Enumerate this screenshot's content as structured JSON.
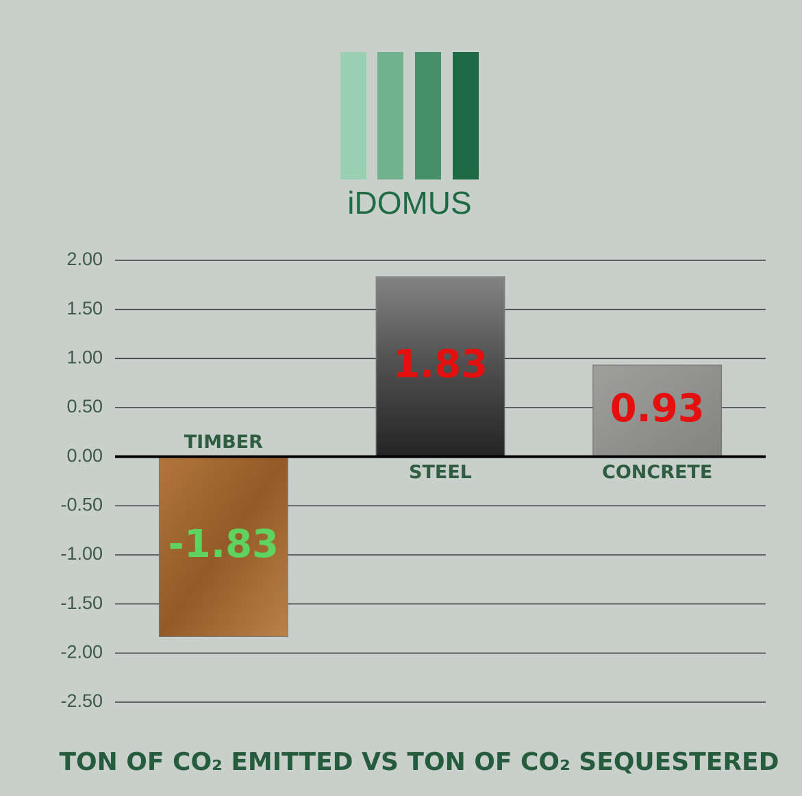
{
  "chart_data": {
    "type": "bar",
    "logo_text": "iDOMUS",
    "title": "TON OF CO₂ EMITTED VS TON OF CO₂ SEQUESTERED",
    "categories": [
      "TIMBER",
      "STEEL",
      "CONCRETE"
    ],
    "values": [
      -1.83,
      1.83,
      0.93
    ],
    "colors": [
      "#a5692f",
      "#3b3b3b",
      "#8f908e"
    ],
    "value_label_colors": [
      "#5fd35f",
      "#e3100f",
      "#e3100f"
    ],
    "ylim": [
      -2.5,
      2
    ],
    "yticks": [
      {
        "value": 2,
        "label": "2.00"
      },
      {
        "value": 1.5,
        "label": "1.50"
      },
      {
        "value": 1,
        "label": "1.00"
      },
      {
        "value": 0.5,
        "label": "0.50"
      },
      {
        "value": 0,
        "label": "0.00"
      },
      {
        "value": -0.5,
        "label": "-0.50"
      },
      {
        "value": -1,
        "label": "-1.00"
      },
      {
        "value": -1.5,
        "label": "-1.50"
      },
      {
        "value": -2,
        "label": "-2.00"
      },
      {
        "value": -2.5,
        "label": "-2.50"
      }
    ],
    "grid": true
  }
}
